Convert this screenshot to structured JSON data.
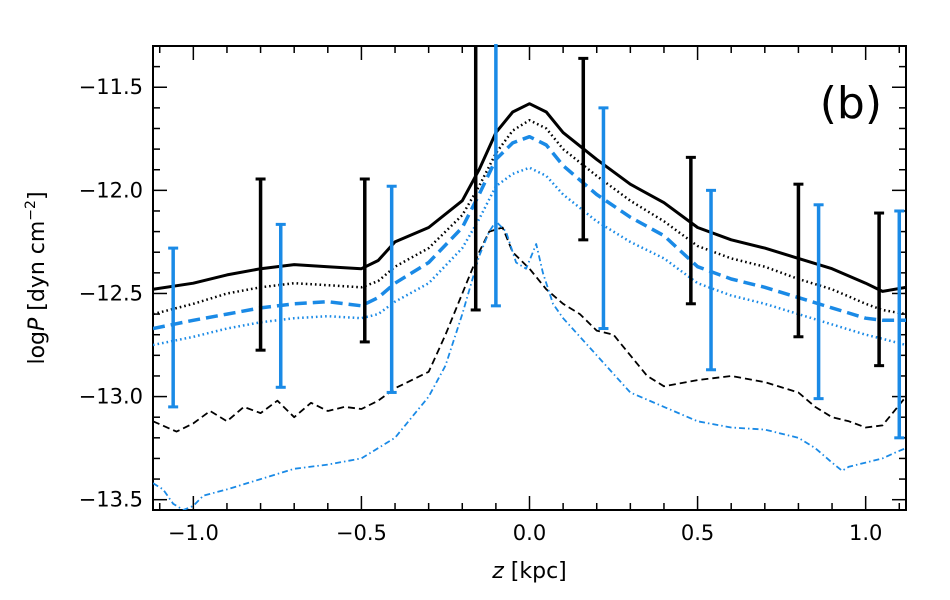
{
  "chart_data": {
    "type": "line",
    "panel_label": "(b)",
    "xlabel": {
      "var": "z",
      "unit": " [kpc]"
    },
    "ylabel": {
      "prefix": "log",
      "var": "P",
      "unit": " [dyn cm",
      "exp": "−2",
      "close": "]"
    },
    "xlim": [
      -1.12,
      1.12
    ],
    "ylim": [
      -13.55,
      -11.3
    ],
    "xticks": [
      -1.0,
      -0.5,
      0.0,
      0.5,
      1.0
    ],
    "xtick_labels": [
      "−1.0",
      "−0.5",
      "0.0",
      "0.5",
      "1.0"
    ],
    "yticks": [
      -11.5,
      -12.0,
      -12.5,
      -13.0,
      -13.5
    ],
    "ytick_labels": [
      "−11.5",
      "−12.0",
      "−12.5",
      "−13.0",
      "−13.5"
    ],
    "colors": {
      "black": "#000000",
      "blue": "#1a8ae6"
    },
    "series": [
      {
        "name": "black-solid",
        "color": "black",
        "dash": "solid",
        "width": 3,
        "points": [
          [
            -1.12,
            -12.48
          ],
          [
            -1.0,
            -12.45
          ],
          [
            -0.9,
            -12.41
          ],
          [
            -0.8,
            -12.38
          ],
          [
            -0.7,
            -12.36
          ],
          [
            -0.6,
            -12.37
          ],
          [
            -0.5,
            -12.38
          ],
          [
            -0.45,
            -12.34
          ],
          [
            -0.4,
            -12.25
          ],
          [
            -0.3,
            -12.18
          ],
          [
            -0.2,
            -12.05
          ],
          [
            -0.15,
            -11.9
          ],
          [
            -0.1,
            -11.72
          ],
          [
            -0.05,
            -11.62
          ],
          [
            0.0,
            -11.58
          ],
          [
            0.05,
            -11.62
          ],
          [
            0.1,
            -11.72
          ],
          [
            0.2,
            -11.85
          ],
          [
            0.3,
            -11.97
          ],
          [
            0.4,
            -12.06
          ],
          [
            0.5,
            -12.18
          ],
          [
            0.6,
            -12.24
          ],
          [
            0.7,
            -12.28
          ],
          [
            0.8,
            -12.33
          ],
          [
            0.9,
            -12.38
          ],
          [
            1.0,
            -12.45
          ],
          [
            1.05,
            -12.49
          ],
          [
            1.12,
            -12.47
          ]
        ]
      },
      {
        "name": "black-dotted",
        "color": "black",
        "dash": "dotted",
        "width": 2.5,
        "points": [
          [
            -1.12,
            -12.6
          ],
          [
            -1.0,
            -12.55
          ],
          [
            -0.9,
            -12.5
          ],
          [
            -0.8,
            -12.47
          ],
          [
            -0.7,
            -12.45
          ],
          [
            -0.6,
            -12.46
          ],
          [
            -0.5,
            -12.47
          ],
          [
            -0.45,
            -12.44
          ],
          [
            -0.4,
            -12.37
          ],
          [
            -0.3,
            -12.28
          ],
          [
            -0.2,
            -12.12
          ],
          [
            -0.15,
            -11.98
          ],
          [
            -0.1,
            -11.82
          ],
          [
            -0.05,
            -11.71
          ],
          [
            0.0,
            -11.66
          ],
          [
            0.05,
            -11.7
          ],
          [
            0.1,
            -11.8
          ],
          [
            0.2,
            -11.93
          ],
          [
            0.3,
            -12.05
          ],
          [
            0.4,
            -12.15
          ],
          [
            0.5,
            -12.27
          ],
          [
            0.6,
            -12.33
          ],
          [
            0.7,
            -12.37
          ],
          [
            0.8,
            -12.43
          ],
          [
            0.9,
            -12.48
          ],
          [
            1.0,
            -12.55
          ],
          [
            1.05,
            -12.58
          ],
          [
            1.12,
            -12.6
          ]
        ]
      },
      {
        "name": "blue-dashed",
        "color": "blue",
        "dash": "dashed",
        "width": 3.5,
        "points": [
          [
            -1.12,
            -12.67
          ],
          [
            -1.0,
            -12.63
          ],
          [
            -0.9,
            -12.6
          ],
          [
            -0.8,
            -12.57
          ],
          [
            -0.7,
            -12.55
          ],
          [
            -0.6,
            -12.54
          ],
          [
            -0.5,
            -12.56
          ],
          [
            -0.45,
            -12.52
          ],
          [
            -0.4,
            -12.45
          ],
          [
            -0.3,
            -12.35
          ],
          [
            -0.2,
            -12.18
          ],
          [
            -0.15,
            -12.02
          ],
          [
            -0.1,
            -11.85
          ],
          [
            -0.05,
            -11.77
          ],
          [
            0.0,
            -11.74
          ],
          [
            0.05,
            -11.78
          ],
          [
            0.1,
            -11.88
          ],
          [
            0.2,
            -12.02
          ],
          [
            0.3,
            -12.13
          ],
          [
            0.4,
            -12.22
          ],
          [
            0.5,
            -12.37
          ],
          [
            0.6,
            -12.43
          ],
          [
            0.7,
            -12.47
          ],
          [
            0.8,
            -12.52
          ],
          [
            0.9,
            -12.57
          ],
          [
            1.0,
            -12.62
          ],
          [
            1.05,
            -12.63
          ],
          [
            1.12,
            -12.63
          ]
        ]
      },
      {
        "name": "blue-dotted",
        "color": "blue",
        "dash": "dotted",
        "width": 2.5,
        "points": [
          [
            -1.12,
            -12.75
          ],
          [
            -1.0,
            -12.71
          ],
          [
            -0.9,
            -12.67
          ],
          [
            -0.8,
            -12.64
          ],
          [
            -0.7,
            -12.62
          ],
          [
            -0.6,
            -12.61
          ],
          [
            -0.5,
            -12.62
          ],
          [
            -0.45,
            -12.6
          ],
          [
            -0.4,
            -12.54
          ],
          [
            -0.3,
            -12.45
          ],
          [
            -0.2,
            -12.28
          ],
          [
            -0.15,
            -12.14
          ],
          [
            -0.1,
            -11.98
          ],
          [
            -0.05,
            -11.92
          ],
          [
            0.0,
            -11.89
          ],
          [
            0.05,
            -11.93
          ],
          [
            0.1,
            -12.02
          ],
          [
            0.2,
            -12.15
          ],
          [
            0.3,
            -12.25
          ],
          [
            0.4,
            -12.33
          ],
          [
            0.5,
            -12.45
          ],
          [
            0.6,
            -12.51
          ],
          [
            0.7,
            -12.55
          ],
          [
            0.8,
            -12.6
          ],
          [
            0.9,
            -12.65
          ],
          [
            1.0,
            -12.7
          ],
          [
            1.05,
            -12.72
          ],
          [
            1.12,
            -12.75
          ]
        ]
      },
      {
        "name": "black-dashed-thin",
        "color": "black",
        "dash": "dashed-thin",
        "width": 1.8,
        "points": [
          [
            -1.12,
            -13.12
          ],
          [
            -1.05,
            -13.17
          ],
          [
            -1.0,
            -13.13
          ],
          [
            -0.95,
            -13.07
          ],
          [
            -0.9,
            -13.12
          ],
          [
            -0.85,
            -13.05
          ],
          [
            -0.8,
            -13.08
          ],
          [
            -0.75,
            -13.02
          ],
          [
            -0.7,
            -13.1
          ],
          [
            -0.65,
            -13.03
          ],
          [
            -0.6,
            -13.07
          ],
          [
            -0.55,
            -13.05
          ],
          [
            -0.5,
            -13.06
          ],
          [
            -0.45,
            -13.02
          ],
          [
            -0.4,
            -12.96
          ],
          [
            -0.35,
            -12.92
          ],
          [
            -0.3,
            -12.88
          ],
          [
            -0.25,
            -12.7
          ],
          [
            -0.2,
            -12.5
          ],
          [
            -0.15,
            -12.3
          ],
          [
            -0.12,
            -12.2
          ],
          [
            -0.08,
            -12.18
          ],
          [
            -0.05,
            -12.3
          ],
          [
            0.0,
            -12.38
          ],
          [
            0.05,
            -12.48
          ],
          [
            0.1,
            -12.55
          ],
          [
            0.15,
            -12.6
          ],
          [
            0.2,
            -12.68
          ],
          [
            0.25,
            -12.7
          ],
          [
            0.3,
            -12.8
          ],
          [
            0.35,
            -12.9
          ],
          [
            0.4,
            -12.95
          ],
          [
            0.5,
            -12.92
          ],
          [
            0.6,
            -12.9
          ],
          [
            0.7,
            -12.93
          ],
          [
            0.8,
            -12.98
          ],
          [
            0.85,
            -13.05
          ],
          [
            0.9,
            -13.1
          ],
          [
            0.95,
            -13.12
          ],
          [
            1.0,
            -13.15
          ],
          [
            1.05,
            -13.14
          ],
          [
            1.08,
            -13.08
          ],
          [
            1.12,
            -13.0
          ]
        ]
      },
      {
        "name": "blue-dashdot",
        "color": "blue",
        "dash": "dashdot",
        "width": 1.8,
        "points": [
          [
            -1.12,
            -13.42
          ],
          [
            -1.09,
            -13.45
          ],
          [
            -1.06,
            -13.52
          ],
          [
            -1.03,
            -13.55
          ],
          [
            -1.0,
            -13.53
          ],
          [
            -0.97,
            -13.48
          ],
          [
            -0.9,
            -13.45
          ],
          [
            -0.8,
            -13.4
          ],
          [
            -0.7,
            -13.35
          ],
          [
            -0.6,
            -13.33
          ],
          [
            -0.5,
            -13.3
          ],
          [
            -0.4,
            -13.2
          ],
          [
            -0.3,
            -13.0
          ],
          [
            -0.25,
            -12.85
          ],
          [
            -0.2,
            -12.6
          ],
          [
            -0.15,
            -12.32
          ],
          [
            -0.12,
            -12.2
          ],
          [
            -0.1,
            -12.15
          ],
          [
            -0.07,
            -12.2
          ],
          [
            -0.04,
            -12.35
          ],
          [
            -0.01,
            -12.38
          ],
          [
            0.01,
            -12.3
          ],
          [
            0.02,
            -12.26
          ],
          [
            0.04,
            -12.4
          ],
          [
            0.07,
            -12.55
          ],
          [
            0.1,
            -12.62
          ],
          [
            0.2,
            -12.8
          ],
          [
            0.3,
            -12.98
          ],
          [
            0.4,
            -13.05
          ],
          [
            0.5,
            -13.12
          ],
          [
            0.6,
            -13.15
          ],
          [
            0.7,
            -13.16
          ],
          [
            0.8,
            -13.2
          ],
          [
            0.85,
            -13.25
          ],
          [
            0.9,
            -13.32
          ],
          [
            0.93,
            -13.36
          ],
          [
            0.95,
            -13.34
          ],
          [
            1.0,
            -13.32
          ],
          [
            1.05,
            -13.3
          ],
          [
            1.09,
            -13.27
          ],
          [
            1.12,
            -13.25
          ]
        ]
      }
    ],
    "errorbars": [
      {
        "x": -1.06,
        "center": -12.665,
        "half": 0.385,
        "color": "blue"
      },
      {
        "x": -0.8,
        "center": -12.36,
        "half": 0.415,
        "color": "black"
      },
      {
        "x": -0.74,
        "center": -12.56,
        "half": 0.395,
        "color": "blue"
      },
      {
        "x": -0.49,
        "center": -12.34,
        "half": 0.395,
        "color": "black"
      },
      {
        "x": -0.41,
        "center": -12.48,
        "half": 0.5,
        "color": "blue"
      },
      {
        "x": -0.16,
        "center": -11.94,
        "half": 0.64,
        "color": "black"
      },
      {
        "x": -0.1,
        "center": -11.925,
        "half": 0.635,
        "color": "blue"
      },
      {
        "x": 0.16,
        "center": -11.8,
        "half": 0.44,
        "color": "black"
      },
      {
        "x": 0.22,
        "center": -12.135,
        "half": 0.535,
        "color": "blue"
      },
      {
        "x": 0.48,
        "center": -12.195,
        "half": 0.355,
        "color": "black"
      },
      {
        "x": 0.54,
        "center": -12.435,
        "half": 0.435,
        "color": "blue"
      },
      {
        "x": 0.8,
        "center": -12.34,
        "half": 0.37,
        "color": "black"
      },
      {
        "x": 0.86,
        "center": -12.54,
        "half": 0.47,
        "color": "blue"
      },
      {
        "x": 1.04,
        "center": -12.48,
        "half": 0.37,
        "color": "black"
      },
      {
        "x": 1.1,
        "center": -12.65,
        "half": 0.55,
        "color": "blue"
      }
    ]
  }
}
